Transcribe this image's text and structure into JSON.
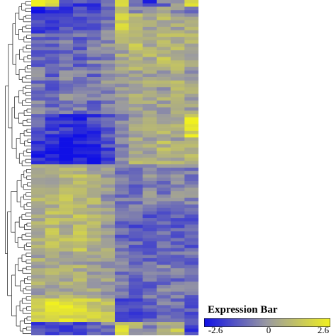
{
  "chart_data": {
    "type": "heatmap",
    "title": "",
    "xlabel": "",
    "ylabel": "",
    "rows": 100,
    "columns": 12,
    "colorscale": {
      "low": "#1010e6",
      "mid": "#9a9aa0",
      "high": "#f0f020",
      "range": [
        -2.6,
        2.6
      ]
    },
    "row_clusters": [
      {
        "rows": [
          0,
          1
        ],
        "pattern": [
          2.4,
          2.4,
          -1.4,
          -1.6,
          -1.6,
          -0.8,
          1.4,
          -1.3,
          -1.8,
          -0.8,
          0.2,
          2.2
        ]
      },
      {
        "rows": [
          2,
          3
        ],
        "pattern": [
          -2.0,
          -2.0,
          -1.6,
          -1.6,
          -1.5,
          -0.5,
          0.6,
          -0.4,
          -0.6,
          0.2,
          -0.2,
          -1.0
        ]
      },
      {
        "rows": [
          4,
          9
        ],
        "pattern": [
          -1.8,
          -1.6,
          -1.4,
          -1.4,
          -1.2,
          -0.6,
          1.6,
          1.2,
          0.6,
          0.8,
          0.4,
          0.3
        ]
      },
      {
        "rows": [
          10,
          19
        ],
        "pattern": [
          -0.9,
          -1.1,
          -0.7,
          -0.9,
          -0.6,
          -0.2,
          0.5,
          1.0,
          0.6,
          0.9,
          0.7,
          0.6
        ]
      },
      {
        "rows": [
          20,
          33
        ],
        "pattern": [
          -0.6,
          -0.9,
          -0.5,
          -0.7,
          -0.8,
          -0.3,
          0.3,
          0.5,
          0.4,
          0.3,
          0.6,
          0.2
        ]
      },
      {
        "rows": [
          34,
          40
        ],
        "pattern": [
          -1.3,
          -1.6,
          -1.9,
          -2.0,
          -1.7,
          -1.1,
          -0.2,
          0.4,
          0.3,
          0.6,
          0.5,
          2.0
        ]
      },
      {
        "rows": [
          41,
          48
        ],
        "pattern": [
          -1.9,
          -2.3,
          -2.5,
          -2.5,
          -2.3,
          -1.6,
          -0.3,
          0.6,
          0.5,
          0.9,
          0.4,
          0.7
        ]
      },
      {
        "rows": [
          49,
          62
        ],
        "pattern": [
          0.6,
          0.7,
          0.9,
          0.9,
          0.6,
          0.1,
          -0.6,
          -0.7,
          -0.2,
          -0.5,
          -0.3,
          -0.4
        ]
      },
      {
        "rows": [
          63,
          74
        ],
        "pattern": [
          0.7,
          0.9,
          0.8,
          1.0,
          0.7,
          0.2,
          -0.9,
          -1.1,
          -1.2,
          -0.9,
          -1.0,
          -1.2
        ]
      },
      {
        "rows": [
          75,
          88
        ],
        "pattern": [
          0.4,
          0.5,
          0.6,
          0.5,
          0.3,
          0.1,
          -0.6,
          -0.8,
          -0.9,
          -0.6,
          -0.7,
          -0.8
        ]
      },
      {
        "rows": [
          89,
          95
        ],
        "pattern": [
          1.9,
          2.1,
          2.2,
          2.0,
          1.6,
          1.1,
          -1.3,
          -1.4,
          -1.1,
          -0.6,
          -1.0,
          -1.4
        ]
      },
      {
        "rows": [
          96,
          99
        ],
        "pattern": [
          -1.4,
          -1.8,
          -1.6,
          -1.7,
          -1.2,
          -0.6,
          1.6,
          0.5,
          -0.3,
          0.4,
          1.1,
          -1.8
        ]
      }
    ],
    "legend": {
      "title": "Expression Bar",
      "ticks": [
        "-2.6",
        "0",
        "2.6"
      ]
    }
  }
}
